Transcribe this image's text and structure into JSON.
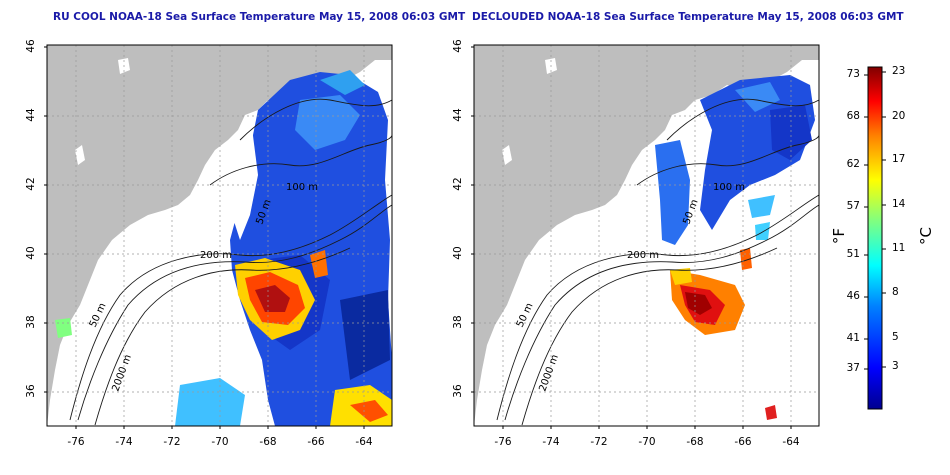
{
  "left_panel": {
    "title": "RU COOL NOAA-18 Sea Surface Temperature May 15, 2008 06:03 GMT"
  },
  "right_panel": {
    "title": "DECLOUDED NOAA-18 Sea Surface Temperature May 15, 2008 06:03 GMT"
  },
  "axes": {
    "y_ticks": [
      "46",
      "44",
      "42",
      "40",
      "38",
      "36"
    ],
    "x_ticks": [
      "-76",
      "-74",
      "-72",
      "-70",
      "-68",
      "-66",
      "-64"
    ]
  },
  "contour_labels": [
    "50 m",
    "200 m",
    "50 m",
    "2000 m",
    "100 m",
    "50 m",
    "200 m",
    "50 m",
    "2000 m",
    "100 m"
  ],
  "colorbar": {
    "unit_left": "°F",
    "unit_right": "°C",
    "fahrenheit_ticks": [
      "73",
      "68",
      "62",
      "57",
      "51",
      "46",
      "41",
      "37"
    ],
    "celsius_ticks": [
      "23",
      "20",
      "17",
      "14",
      "11",
      "8",
      "5",
      "3"
    ],
    "colors": [
      "#00008f",
      "#0000ff",
      "#0080ff",
      "#00ffff",
      "#80ff80",
      "#ffff00",
      "#ff8000",
      "#ff0000",
      "#800000"
    ]
  }
}
